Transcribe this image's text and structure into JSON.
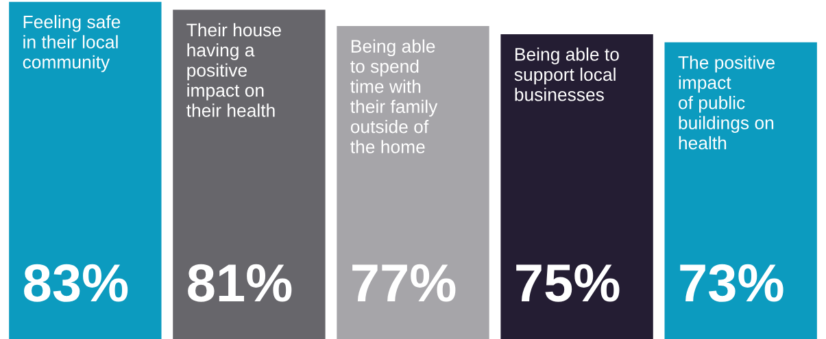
{
  "chart_data": {
    "type": "bar",
    "categories": [
      "Feeling safe\nin their local\ncommunity",
      "Their house\nhaving a\npositive\nimpact on\ntheir health",
      "Being able\nto spend\ntime with\ntheir family\noutside of\nthe home",
      "Being able to\nsupport local\nbusinesses",
      "The positive\nimpact\nof public\nbuildings on\nhealth"
    ],
    "values": [
      83,
      81,
      77,
      75,
      73
    ],
    "colors": [
      "#0c9bbf",
      "#67666b",
      "#a6a5a9",
      "#241d33",
      "#0c9bbf"
    ],
    "value_labels": [
      "83%",
      "81%",
      "77%",
      "75%",
      "73%"
    ],
    "ylim": [
      0,
      83
    ]
  }
}
